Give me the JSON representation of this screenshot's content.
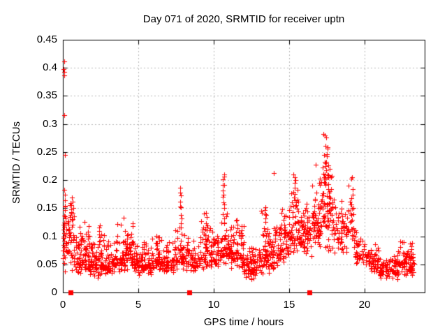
{
  "title": "Day 071 of 2020, SRMTID for receiver uptn",
  "colors": {
    "background": "#ffffff",
    "points": "#ff0000",
    "grid": "#b9b9b9",
    "border": "#000000",
    "text": "#000000"
  },
  "chart_data": {
    "type": "scatter",
    "title": "Day 071 of 2020, SRMTID for receiver uptn",
    "xlabel": "GPS time / hours",
    "ylabel": "SRMTID / TECUs",
    "xlim": [
      0,
      24
    ],
    "ylim": [
      0,
      0.45
    ],
    "xticks": [
      0,
      5,
      10,
      15,
      20
    ],
    "yticks": [
      0,
      0.05,
      0.1,
      0.15,
      0.2,
      0.25,
      0.3,
      0.35,
      0.4,
      0.45
    ],
    "x_tick_labels": [
      "0",
      "5",
      "10",
      "15",
      "20"
    ],
    "y_tick_labels": [
      "0",
      "0.05",
      "0.1",
      "0.15",
      "0.2",
      "0.25",
      "0.3",
      "0.35",
      "0.4",
      "0.45"
    ],
    "grid": true,
    "legend": "none",
    "series": [
      {
        "name": "srmtid-scatter",
        "marker": "plus",
        "color": "#ff0000",
        "seed": 71,
        "bin_format": [
          "x_start",
          "x_end",
          "count",
          "y_min",
          "y_mode",
          "y_max"
        ],
        "cloud_bins": [
          [
            0.0,
            0.3,
            22,
            0.045,
            0.1,
            0.185
          ],
          [
            0.3,
            0.8,
            40,
            0.035,
            0.08,
            0.165
          ],
          [
            0.8,
            1.3,
            45,
            0.03,
            0.055,
            0.125
          ],
          [
            1.3,
            1.8,
            50,
            0.03,
            0.062,
            0.13
          ],
          [
            1.8,
            2.3,
            50,
            0.027,
            0.052,
            0.108
          ],
          [
            2.3,
            2.8,
            48,
            0.025,
            0.05,
            0.115
          ],
          [
            2.8,
            3.4,
            50,
            0.03,
            0.05,
            0.095
          ],
          [
            3.4,
            4.1,
            55,
            0.032,
            0.062,
            0.145
          ],
          [
            4.1,
            4.7,
            55,
            0.04,
            0.075,
            0.125
          ],
          [
            4.7,
            5.3,
            48,
            0.03,
            0.05,
            0.09
          ],
          [
            5.3,
            5.9,
            48,
            0.03,
            0.05,
            0.1
          ],
          [
            5.9,
            6.6,
            55,
            0.035,
            0.06,
            0.115
          ],
          [
            6.6,
            7.4,
            55,
            0.03,
            0.05,
            0.095
          ],
          [
            7.4,
            8.1,
            50,
            0.04,
            0.065,
            0.125
          ],
          [
            8.1,
            8.9,
            52,
            0.035,
            0.055,
            0.105
          ],
          [
            8.9,
            9.8,
            58,
            0.04,
            0.068,
            0.14
          ],
          [
            9.8,
            10.4,
            48,
            0.04,
            0.06,
            0.11
          ],
          [
            10.4,
            11.0,
            48,
            0.05,
            0.08,
            0.15
          ],
          [
            11.0,
            12.0,
            85,
            0.04,
            0.07,
            0.135
          ],
          [
            12.0,
            12.9,
            70,
            0.02,
            0.045,
            0.085
          ],
          [
            12.9,
            13.7,
            62,
            0.03,
            0.068,
            0.15
          ],
          [
            13.7,
            14.3,
            50,
            0.04,
            0.07,
            0.125
          ],
          [
            14.3,
            15.0,
            58,
            0.05,
            0.088,
            0.158
          ],
          [
            15.0,
            15.7,
            58,
            0.06,
            0.1,
            0.185
          ],
          [
            15.7,
            16.5,
            70,
            0.06,
            0.103,
            0.172
          ],
          [
            16.5,
            17.0,
            48,
            0.08,
            0.125,
            0.198
          ],
          [
            17.0,
            17.9,
            88,
            0.09,
            0.155,
            0.235
          ],
          [
            17.0,
            18.0,
            8,
            0.07,
            0.08,
            0.095
          ],
          [
            17.9,
            18.8,
            55,
            0.06,
            0.108,
            0.185
          ],
          [
            18.8,
            19.4,
            28,
            0.075,
            0.115,
            0.185
          ],
          [
            19.4,
            20.1,
            40,
            0.045,
            0.07,
            0.12
          ],
          [
            20.1,
            21.0,
            58,
            0.03,
            0.055,
            0.09
          ],
          [
            21.0,
            22.2,
            78,
            0.02,
            0.04,
            0.07
          ],
          [
            22.2,
            23.0,
            58,
            0.03,
            0.055,
            0.095
          ],
          [
            23.0,
            23.35,
            26,
            0.03,
            0.055,
            0.09
          ]
        ],
        "column_format": [
          "x_center",
          "count",
          "y_min",
          "y_max",
          "x_jitter"
        ],
        "spike_columns": [
          [
            0.1,
            16,
            0.04,
            0.185,
            0.1
          ],
          [
            0.55,
            10,
            0.125,
            0.168,
            0.25
          ],
          [
            2.4,
            6,
            0.09,
            0.12,
            0.15
          ],
          [
            7.82,
            10,
            0.115,
            0.19,
            0.12
          ],
          [
            9.45,
            8,
            0.1,
            0.145,
            0.2
          ],
          [
            10.68,
            12,
            0.125,
            0.205,
            0.12
          ],
          [
            13.4,
            8,
            0.1,
            0.155,
            0.2
          ],
          [
            15.35,
            5,
            0.165,
            0.205,
            0.15
          ],
          [
            17.45,
            10,
            0.195,
            0.255,
            0.18
          ],
          [
            19.15,
            9,
            0.105,
            0.2,
            0.15
          ],
          [
            23.15,
            8,
            0.035,
            0.09,
            0.15
          ]
        ],
        "outlier_points": [
          [
            0.07,
            0.412
          ],
          [
            0.05,
            0.398
          ],
          [
            0.1,
            0.393
          ],
          [
            0.08,
            0.386
          ],
          [
            0.1,
            0.316
          ],
          [
            0.12,
            0.245
          ],
          [
            10.68,
            0.21
          ],
          [
            10.62,
            0.192
          ],
          [
            14.0,
            0.213
          ],
          [
            15.3,
            0.21
          ],
          [
            15.45,
            0.2
          ],
          [
            15.55,
            0.183
          ],
          [
            16.78,
            0.228
          ],
          [
            17.3,
            0.282
          ],
          [
            17.38,
            0.28
          ],
          [
            17.45,
            0.276
          ],
          [
            17.4,
            0.261
          ],
          [
            17.55,
            0.256
          ],
          [
            17.35,
            0.245
          ],
          [
            17.48,
            0.232
          ],
          [
            17.25,
            0.222
          ],
          [
            17.6,
            0.226
          ],
          [
            17.68,
            0.22
          ],
          [
            18.95,
            0.19
          ],
          [
            19.2,
            0.205
          ]
        ]
      },
      {
        "name": "event-markers",
        "marker": "filled-square",
        "color": "#ff0000",
        "points": [
          [
            0.5,
            0
          ],
          [
            8.4,
            0
          ],
          [
            16.35,
            0
          ]
        ]
      }
    ]
  }
}
